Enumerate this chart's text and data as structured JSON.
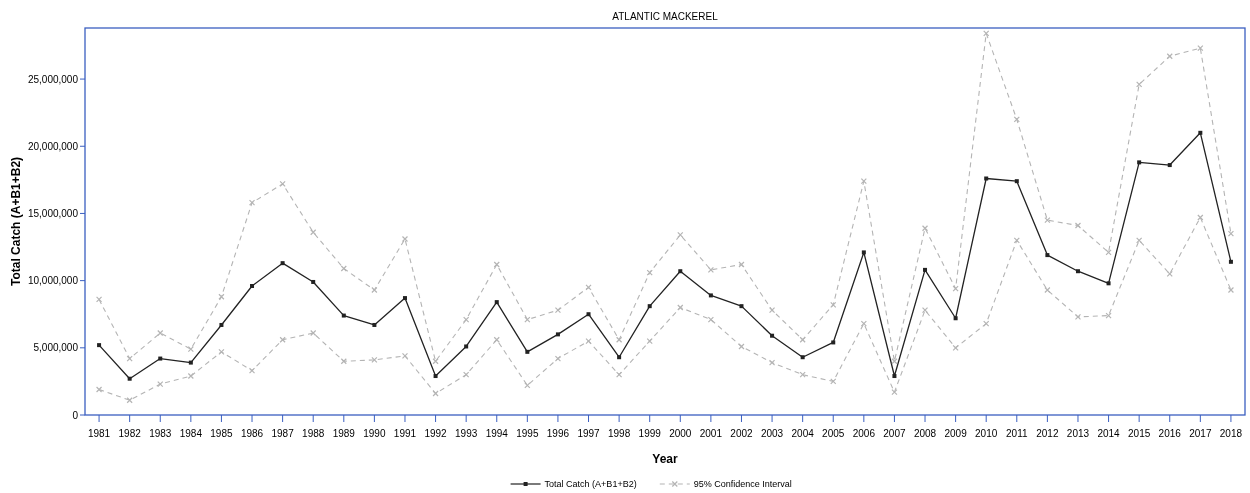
{
  "chart_data": {
    "type": "line",
    "title": "ATLANTIC MACKEREL",
    "xlabel": "Year",
    "ylabel": "Total Catch (A+B1+B2)",
    "categories": [
      "1981",
      "1982",
      "1983",
      "1984",
      "1985",
      "1986",
      "1987",
      "1988",
      "1989",
      "1990",
      "1991",
      "1992",
      "1993",
      "1994",
      "1995",
      "1996",
      "1997",
      "1998",
      "1999",
      "2000",
      "2001",
      "2002",
      "2003",
      "2004",
      "2005",
      "2006",
      "2007",
      "2008",
      "2009",
      "2010",
      "2011",
      "2012",
      "2013",
      "2014",
      "2015",
      "2016",
      "2017",
      "2018"
    ],
    "ylim": [
      0,
      28800000
    ],
    "yticks": [
      0,
      {
        "value": 5000000,
        "label": "5,000,000"
      },
      {
        "value": 10000000,
        "label": "10,000,000"
      },
      {
        "value": 15000000,
        "label": "15,000,000"
      },
      {
        "value": 20000000,
        "label": "20,000,000"
      },
      {
        "value": 25000000,
        "label": "25,000,000"
      }
    ],
    "grid": false,
    "legend": "bottom",
    "series": [
      {
        "name": "Total Catch (A+B1+B2)",
        "color": "#222222",
        "marker": "square",
        "line_style": "solid",
        "values": [
          5200000,
          2700000,
          4200000,
          3900000,
          6700000,
          9600000,
          11300000,
          9900000,
          7400000,
          6700000,
          8700000,
          2900000,
          5100000,
          8400000,
          4700000,
          6000000,
          7500000,
          4300000,
          8100000,
          10700000,
          8900000,
          8100000,
          5900000,
          4300000,
          5400000,
          12100000,
          2900000,
          10800000,
          7200000,
          17600000,
          17400000,
          11900000,
          10700000,
          9800000,
          18800000,
          18600000,
          21000000,
          11400000
        ]
      },
      {
        "name": "95% Confidence Interval",
        "color": "#b4b4b4",
        "marker": "cross",
        "line_style": "dashed",
        "values": [
          8600000,
          4200000,
          6100000,
          4900000,
          8800000,
          15800000,
          17200000,
          13600000,
          10900000,
          9300000,
          13100000,
          4000000,
          7100000,
          11200000,
          7100000,
          7800000,
          9500000,
          5600000,
          10600000,
          13400000,
          10800000,
          11200000,
          7800000,
          5600000,
          8200000,
          17400000,
          4000000,
          13900000,
          9400000,
          28400000,
          22000000,
          14500000,
          14100000,
          12100000,
          24600000,
          26700000,
          27300000,
          13500000
        ]
      },
      {
        "color": "#b4b4b4",
        "marker": "cross",
        "line_style": "dashed",
        "values": [
          1900000,
          1100000,
          2300000,
          2900000,
          4700000,
          3300000,
          5600000,
          6100000,
          4000000,
          4100000,
          4400000,
          1600000,
          3000000,
          5600000,
          2200000,
          4200000,
          5500000,
          3000000,
          5500000,
          8000000,
          7100000,
          5100000,
          3900000,
          3000000,
          2500000,
          6800000,
          1700000,
          7800000,
          5000000,
          6800000,
          13000000,
          9300000,
          7300000,
          7400000,
          13000000,
          10500000,
          14700000,
          9300000
        ]
      }
    ]
  }
}
